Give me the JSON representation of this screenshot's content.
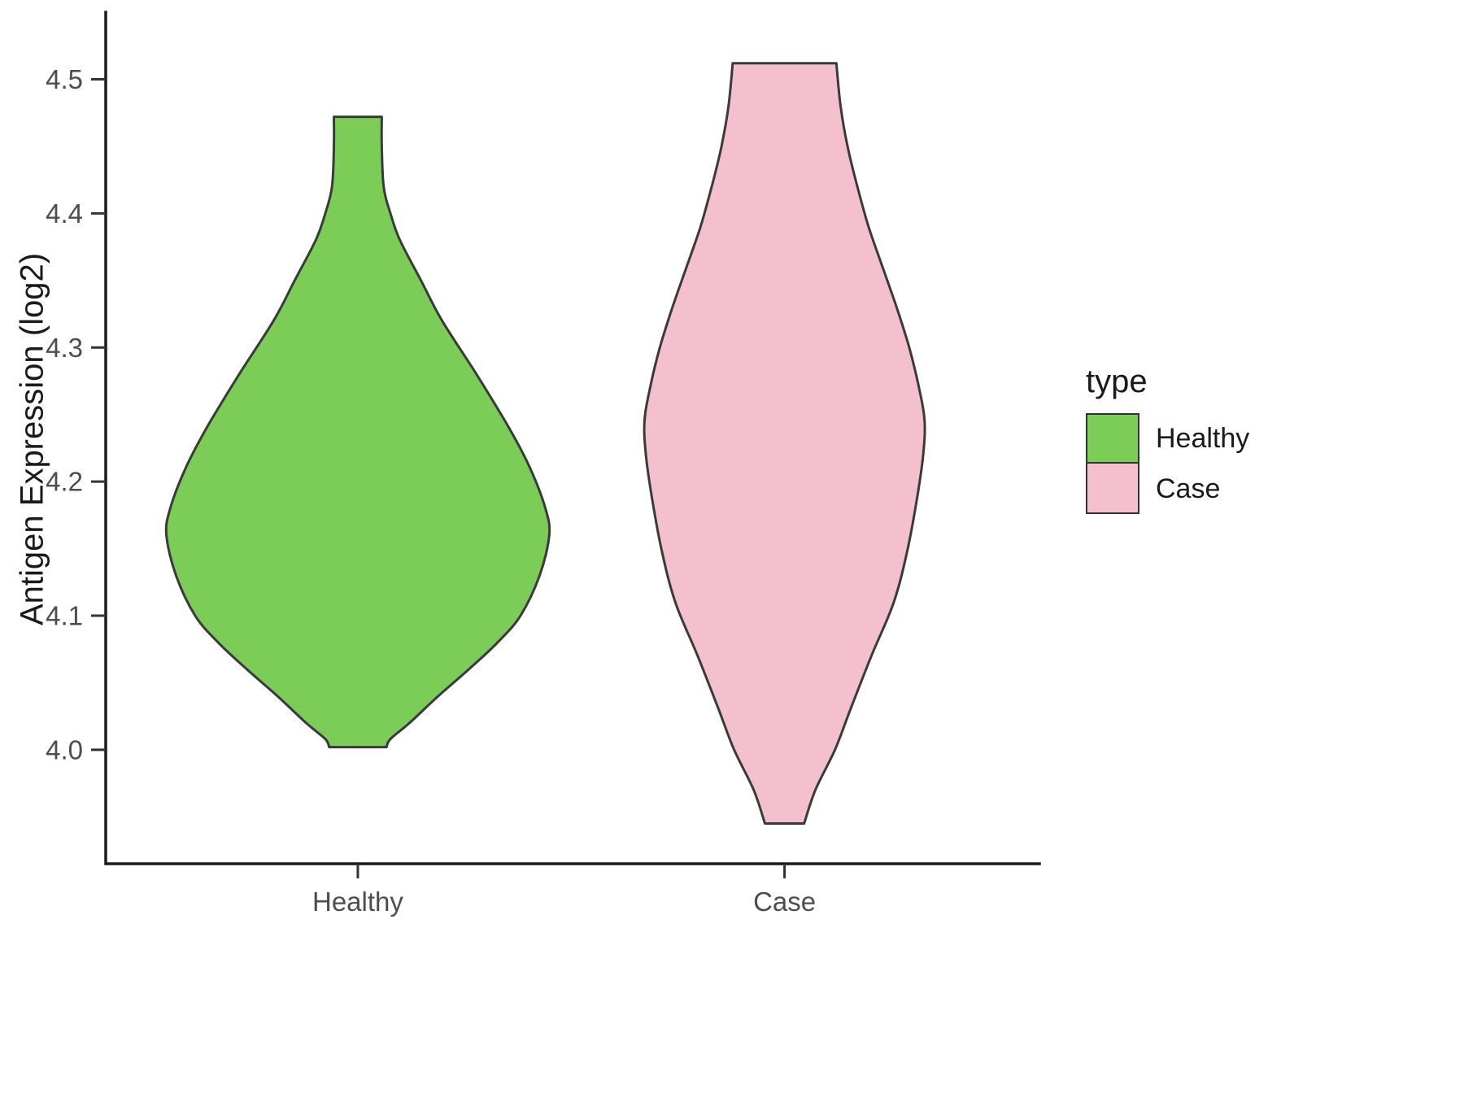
{
  "chart_data": {
    "type": "violin",
    "title": "",
    "xlabel": "",
    "ylabel": "Antigen Expression (log2)",
    "categories": [
      "Healthy",
      "Case"
    ],
    "y_ticks": [
      4.0,
      4.1,
      4.2,
      4.3,
      4.4,
      4.5
    ],
    "y_tick_labels": [
      "4.0",
      "4.1",
      "4.2",
      "4.3",
      "4.4",
      "4.5"
    ],
    "ylim": [
      3.915,
      4.55
    ],
    "grid": false,
    "outline_color": "#3a3a3a",
    "axis_color": "#1a1a1a",
    "tick_label_color": "#4d4d4d",
    "legend": {
      "title": "type",
      "position": "right",
      "entries": [
        {
          "label": "Healthy",
          "color": "#7bcd57"
        },
        {
          "label": "Case",
          "color": "#f5c0cd"
        }
      ]
    },
    "series": [
      {
        "name": "Healthy",
        "color": "#7bcd57",
        "x_frac": 0.27,
        "width_scale": 0.82,
        "y_min": 4.002,
        "y_max": 4.472,
        "profile": [
          [
            4.472,
            0.125
          ],
          [
            4.45,
            0.125
          ],
          [
            4.42,
            0.135
          ],
          [
            4.4,
            0.17
          ],
          [
            4.38,
            0.22
          ],
          [
            4.35,
            0.33
          ],
          [
            4.32,
            0.44
          ],
          [
            4.28,
            0.62
          ],
          [
            4.24,
            0.79
          ],
          [
            4.21,
            0.9
          ],
          [
            4.18,
            0.98
          ],
          [
            4.16,
            1.0
          ],
          [
            4.13,
            0.95
          ],
          [
            4.1,
            0.85
          ],
          [
            4.08,
            0.73
          ],
          [
            4.06,
            0.58
          ],
          [
            4.04,
            0.42
          ],
          [
            4.02,
            0.27
          ],
          [
            4.008,
            0.17
          ],
          [
            4.002,
            0.15
          ]
        ]
      },
      {
        "name": "Case",
        "color": "#f5c0cd",
        "x_frac": 0.727,
        "width_scale": 0.6,
        "y_min": 3.945,
        "y_max": 4.512,
        "profile": [
          [
            4.512,
            0.37
          ],
          [
            4.48,
            0.4
          ],
          [
            4.45,
            0.45
          ],
          [
            4.42,
            0.52
          ],
          [
            4.39,
            0.6
          ],
          [
            4.36,
            0.7
          ],
          [
            4.33,
            0.8
          ],
          [
            4.3,
            0.89
          ],
          [
            4.27,
            0.96
          ],
          [
            4.245,
            1.0
          ],
          [
            4.22,
            0.99
          ],
          [
            4.19,
            0.95
          ],
          [
            4.15,
            0.88
          ],
          [
            4.11,
            0.78
          ],
          [
            4.07,
            0.62
          ],
          [
            4.03,
            0.47
          ],
          [
            4.0,
            0.36
          ],
          [
            3.97,
            0.22
          ],
          [
            3.945,
            0.14
          ]
        ]
      }
    ]
  }
}
